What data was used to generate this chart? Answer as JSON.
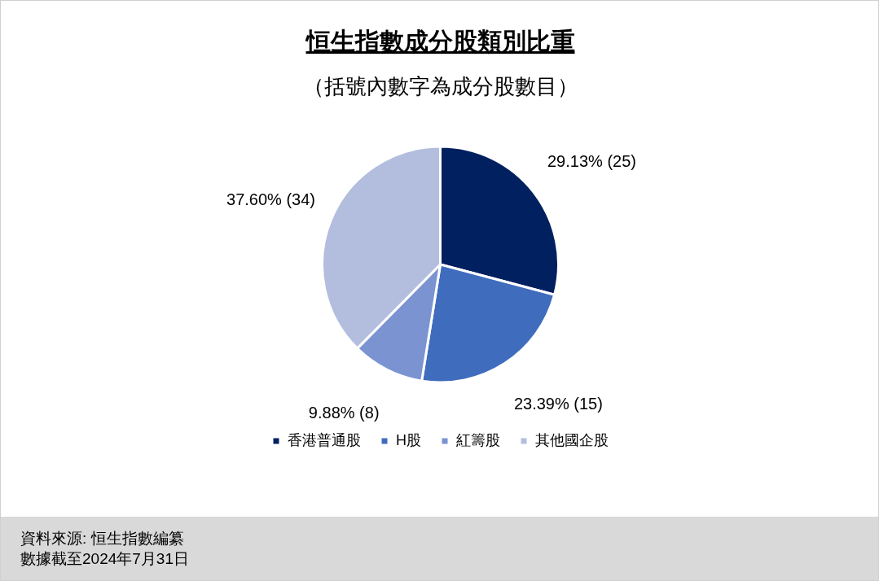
{
  "chart_data": {
    "type": "pie",
    "title": "恒生指數成分股類別比重",
    "subtitle": "（括號內數字為成分股數目）",
    "categories": [
      "香港普通股",
      "H股",
      "紅籌股",
      "其他國企股"
    ],
    "values": [
      29.13,
      23.39,
      9.88,
      37.6
    ],
    "colors": [
      "#002060",
      "#3f6cbd",
      "#7b93d1",
      "#b3bedf"
    ],
    "value_labels": [
      "29.13% (25)",
      "23.39% (15)",
      "9.88% (8)",
      "37.60% (34)"
    ],
    "legend": "bottom",
    "annotations": [
      "資料來源: 恒生指數編纂",
      "數據截至2024年7月31日"
    ]
  }
}
